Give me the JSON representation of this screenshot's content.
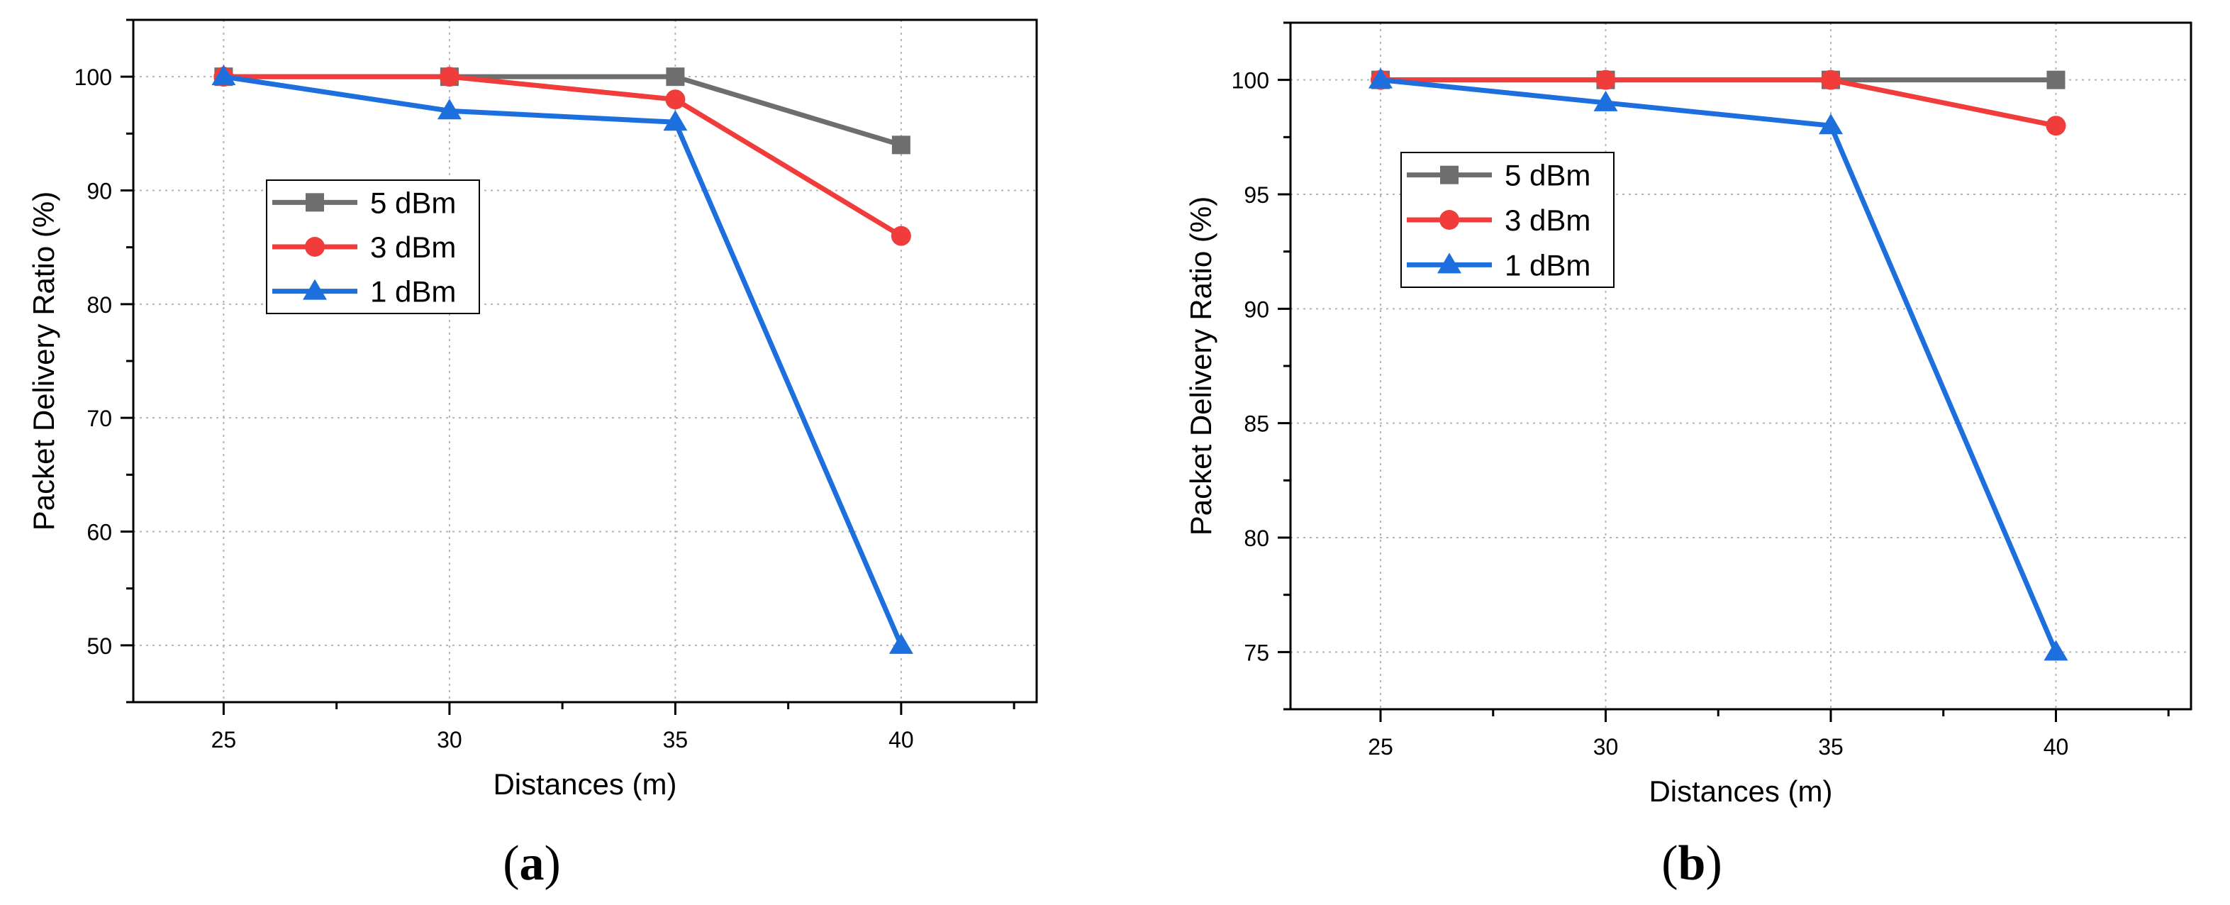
{
  "chart_data": [
    {
      "type": "line",
      "panel_label": "a",
      "xlabel": "Distances (m)",
      "ylabel": "Packet Delivery Ratio (%)",
      "x": [
        25,
        30,
        35,
        40
      ],
      "xlim": [
        23,
        43
      ],
      "ylim": [
        45,
        105
      ],
      "xticks": [
        "25",
        "30",
        "35",
        "40"
      ],
      "yticks": [
        "50",
        "60",
        "70",
        "80",
        "90",
        "100"
      ],
      "grid": true,
      "legend_position": "upper-left",
      "series": [
        {
          "name": "5 dBm",
          "values": [
            100,
            100,
            100,
            94
          ],
          "color": "#6e6e6e",
          "marker": "square"
        },
        {
          "name": "3 dBm",
          "values": [
            100,
            100,
            98,
            86
          ],
          "color": "#f13c3c",
          "marker": "circle"
        },
        {
          "name": "1 dBm",
          "values": [
            100,
            97,
            96,
            50
          ],
          "color": "#1c6fdc",
          "marker": "triangle"
        }
      ]
    },
    {
      "type": "line",
      "panel_label": "b",
      "xlabel": "Distances (m)",
      "ylabel": "Packet Delivery Ratio (%)",
      "x": [
        25,
        30,
        35,
        40
      ],
      "xlim": [
        23,
        43
      ],
      "ylim": [
        72.5,
        102.5
      ],
      "xticks": [
        "25",
        "30",
        "35",
        "40"
      ],
      "yticks": [
        "75",
        "80",
        "85",
        "90",
        "95",
        "100"
      ],
      "grid": true,
      "legend_position": "upper-left",
      "series": [
        {
          "name": "5 dBm",
          "values": [
            100,
            100,
            100,
            100
          ],
          "color": "#6e6e6e",
          "marker": "square"
        },
        {
          "name": "3 dBm",
          "values": [
            100,
            100,
            100,
            98
          ],
          "color": "#f13c3c",
          "marker": "circle"
        },
        {
          "name": "1 dBm",
          "values": [
            100,
            99,
            98,
            75
          ],
          "color": "#1c6fdc",
          "marker": "triangle"
        }
      ]
    }
  ]
}
